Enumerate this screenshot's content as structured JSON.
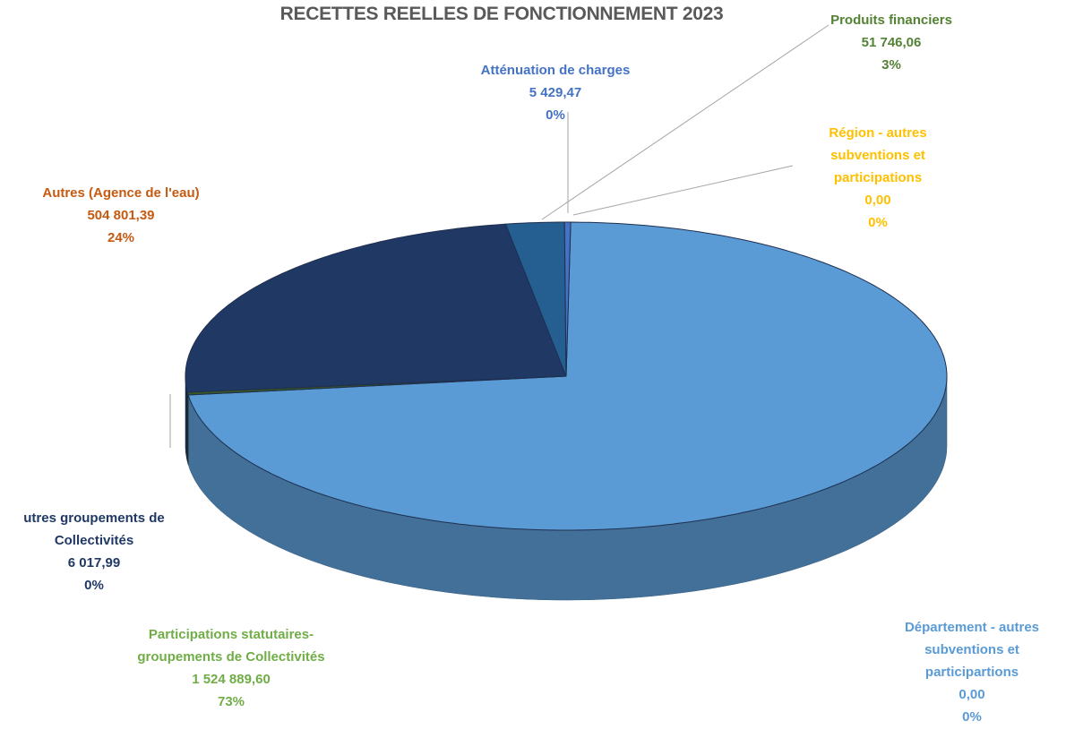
{
  "chart_data": {
    "type": "pie",
    "title": "RECETTES REELLES DE FONCTIONNEMENT 2023",
    "categories": [
      "Département - autres subventions et participartions",
      "Participations statutaires- groupements de Collectivités",
      "utres groupements de Collectivités",
      "Autres (Agence de l'eau)",
      "Produits financiers",
      "Atténuation de charges",
      "Région - autres subventions et participations"
    ],
    "values": [
      0,
      1524889.6,
      6017.99,
      504801.39,
      51746.06,
      5429.47,
      0
    ],
    "value_labels": [
      "0,00",
      "1 524 889,60",
      "6 017,99",
      "504 801,39",
      "51 746,06",
      "5 429,47",
      "0,00"
    ],
    "percent_labels": [
      "0%",
      "73%",
      "0%",
      "24%",
      "3%",
      "0%",
      "0%"
    ],
    "colors": [
      "#9dc3e6",
      "#5b9bd5",
      "#375623",
      "#203864",
      "#255e91",
      "#4472c4",
      "#ffc000"
    ],
    "label_colors": [
      "#5b9bd5",
      "#70ad47",
      "#203864",
      "#c55a11",
      "#548235",
      "#4472c4",
      "#ffc000"
    ]
  }
}
